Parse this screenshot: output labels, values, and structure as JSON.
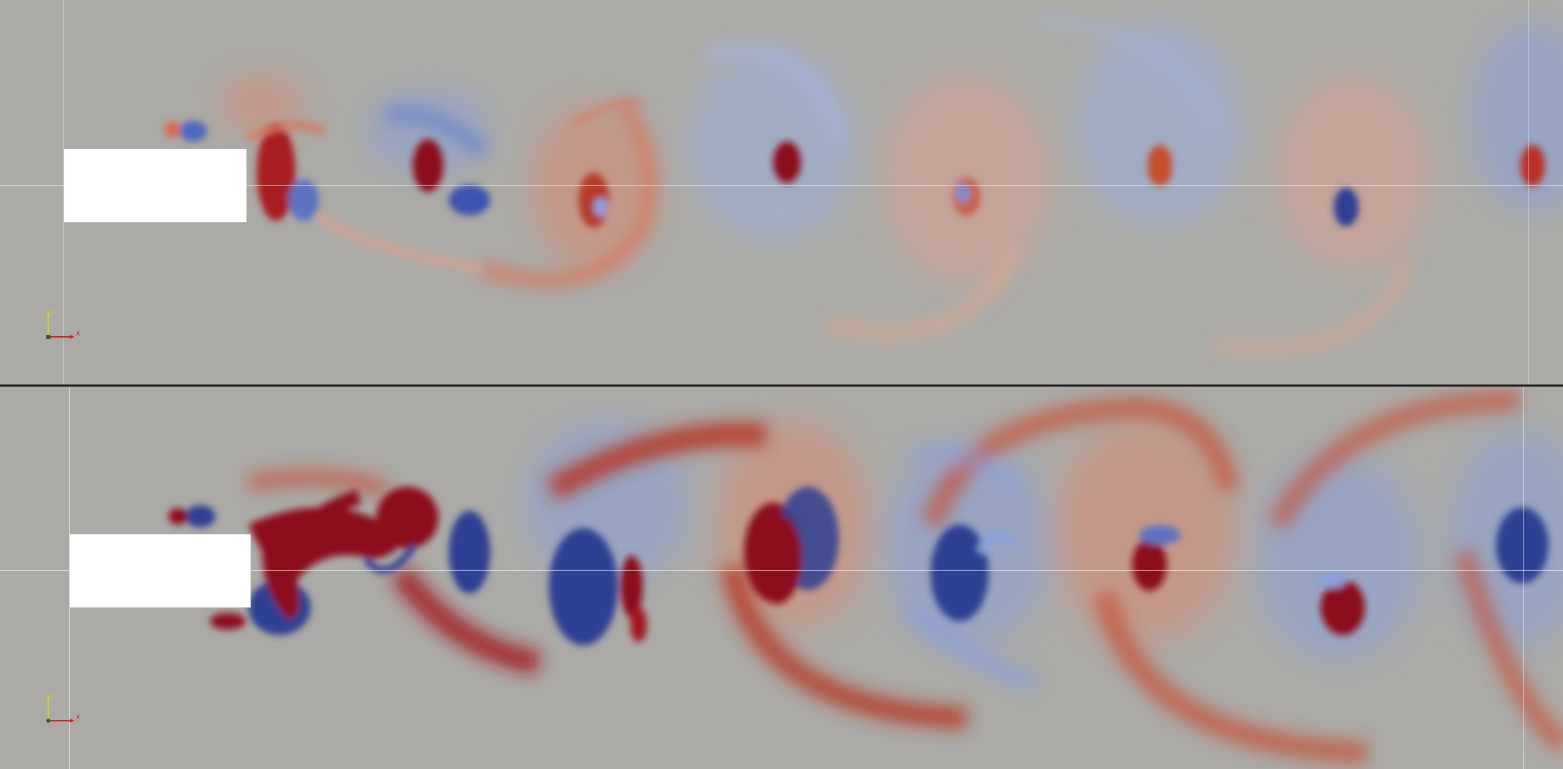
{
  "views": [
    {
      "id": "top",
      "description_name": "vorticity-field-low-magnitude",
      "axes": {
        "x_label": "X",
        "y_label": "Y"
      }
    },
    {
      "id": "bottom",
      "description_name": "vorticity-field-high-magnitude",
      "axes": {
        "x_label": "X",
        "y_label": "Y"
      }
    }
  ],
  "colors": {
    "background": "#abaaa6",
    "positive": "#8c0a1c",
    "negative": "#2e3f93",
    "obstacle": "#ffffff",
    "divider": "#1c1c1c",
    "axis_x": "#d22020",
    "axis_y": "#d8d020",
    "axis_origin": "#1a6a1a"
  }
}
